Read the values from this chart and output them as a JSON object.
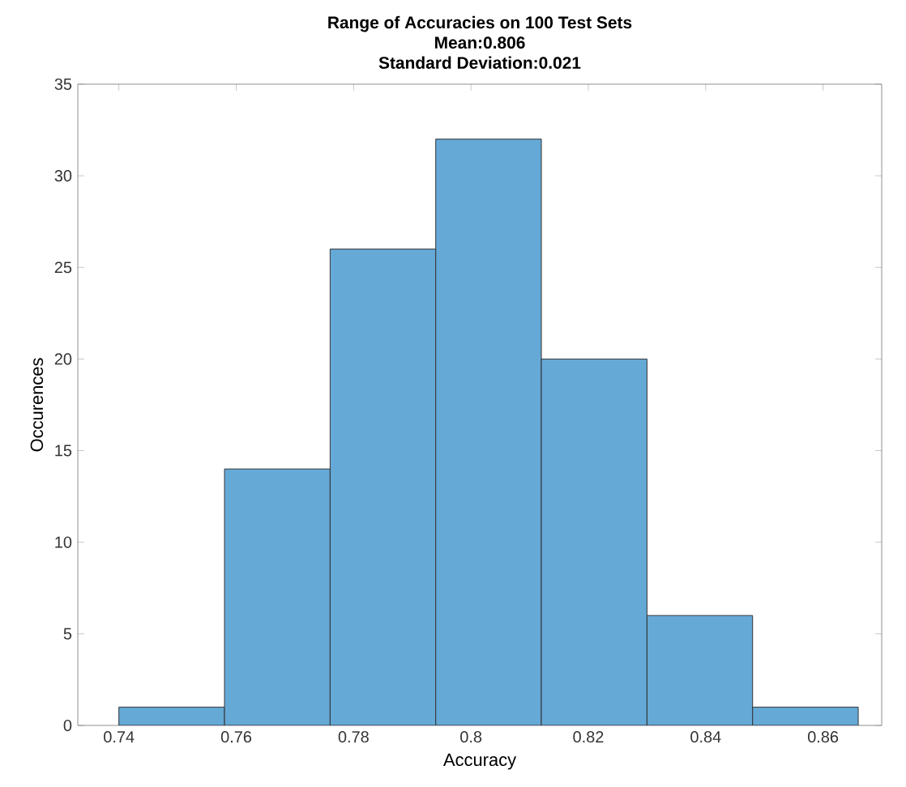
{
  "chart_data": {
    "type": "histogram",
    "title": "Range of Accuracies on 100 Test Sets",
    "subtitle": "Mean:0.806",
    "annotations": [
      "Standard Deviation:0.021"
    ],
    "xlabel": "Accuracy",
    "ylabel": "Occurences",
    "bins": [
      0.74,
      0.758,
      0.776,
      0.794,
      0.812,
      0.83,
      0.848,
      0.866
    ],
    "values": [
      1,
      14,
      26,
      32,
      20,
      6,
      1
    ],
    "color": "#65a9d7",
    "xlim": [
      0.733,
      0.87
    ],
    "ylim": [
      0,
      35
    ],
    "xticks": [
      0.74,
      0.76,
      0.78,
      0.8,
      0.82,
      0.84,
      0.86
    ],
    "yticks": [
      0,
      5,
      10,
      15,
      20,
      25,
      30,
      35
    ]
  }
}
